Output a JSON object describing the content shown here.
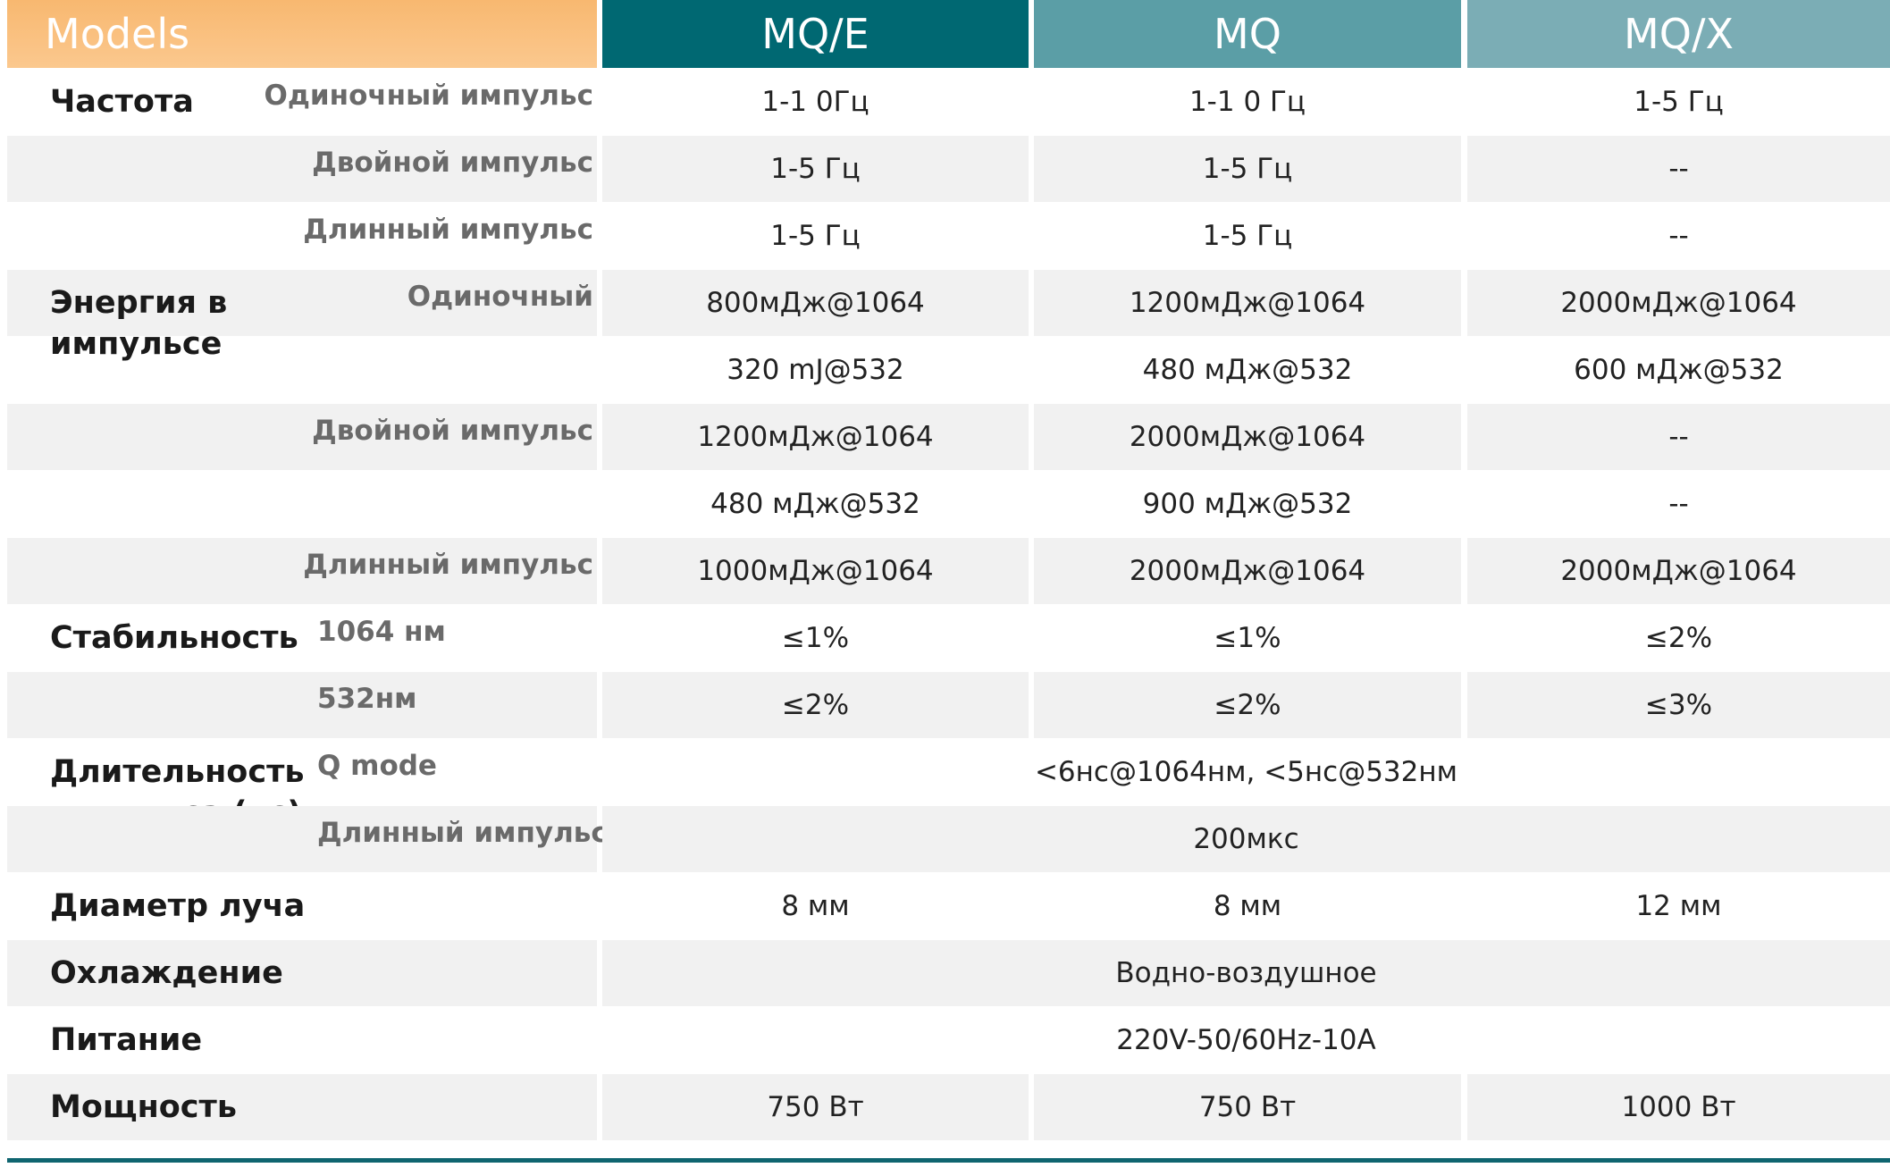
{
  "header": [
    "Models",
    "MQ/E",
    "MQ",
    "MQ/X"
  ],
  "rows": [
    {
      "param": "Частота",
      "sub": "Одиночный импульс",
      "cells": [
        "1-1 0Гц",
        "1-1 0 Гц",
        "1-5 Гц"
      ]
    },
    {
      "sub": "Двойной импульс",
      "cells": [
        "1-5 Гц",
        "1-5 Гц",
        "--"
      ]
    },
    {
      "sub": "Длинный импульс",
      "cells": [
        "1-5 Гц",
        "1-5 Гц",
        "--"
      ]
    },
    {
      "param": "Энергия в импульсе",
      "sub": "Одиночный",
      "cells": [
        "800мДж@1064",
        "1200мДж@1064",
        "2000мДж@1064"
      ]
    },
    {
      "cells": [
        "320 mJ@532",
        "480 мДж@532",
        "600 мДж@532"
      ]
    },
    {
      "sub": "Двойной импульс",
      "cells": [
        "1200мДж@1064",
        "2000мДж@1064",
        "--"
      ]
    },
    {
      "cells": [
        "480 мДж@532",
        "900 мДж@532",
        "--"
      ]
    },
    {
      "sub": "Длинный импульс",
      "cells": [
        "1000мДж@1064",
        "2000мДж@1064",
        "2000мДж@1064"
      ]
    },
    {
      "param": "Стабильность",
      "sub": "1064 нм",
      "cells": [
        "≤1%",
        "≤1%",
        "≤2%"
      ]
    },
    {
      "sub": "532нм",
      "cells": [
        "≤2%",
        "≤2%",
        "≤3%"
      ]
    },
    {
      "param": "Длительность импульса (нс)",
      "sub": "Q mode",
      "cells": [
        "<6нс@1064нм, <5нс@532нм"
      ]
    },
    {
      "sub": "Длинный импульс",
      "cells": [
        "200мкс"
      ]
    },
    {
      "param": "Диаметр луча",
      "cells": [
        "8 мм",
        "8 мм",
        "12 мм"
      ]
    },
    {
      "param": "Охлаждение",
      "cells": [
        "Водно-воздушное"
      ]
    },
    {
      "param": "Питание",
      "cells": [
        "220V-50/60Hz-10A"
      ]
    },
    {
      "param": "Мощность",
      "cells": [
        "750 Вт",
        "750 Вт",
        "1000 Вт"
      ]
    }
  ]
}
